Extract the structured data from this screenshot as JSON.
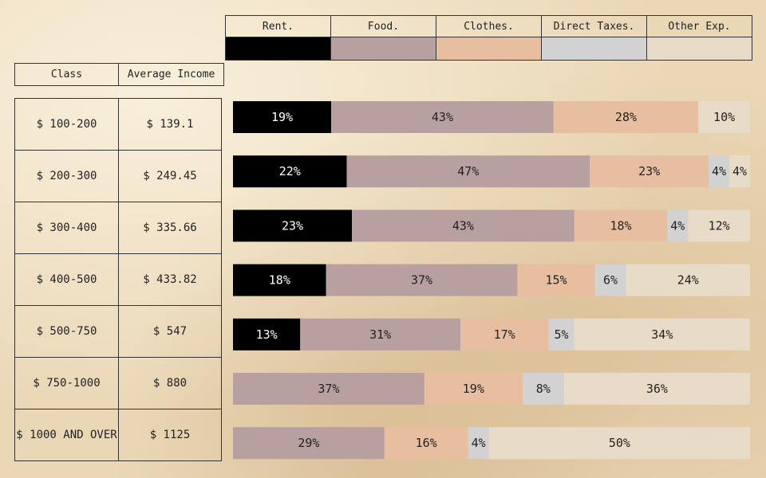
{
  "legend": [
    {
      "label": "Rent.",
      "color": "#000000"
    },
    {
      "label": "Food.",
      "color": "#b8a0a0"
    },
    {
      "label": "Clothes.",
      "color": "#e8bea0"
    },
    {
      "label": "Direct Taxes.",
      "color": "#d2d2d2"
    },
    {
      "label": "Other Exp.",
      "color": "#e8dcc8"
    }
  ],
  "table": {
    "class_header": "Class",
    "income_header": "Average Income"
  },
  "chart_data": {
    "type": "bar",
    "orientation": "horizontal",
    "stacked": true,
    "normalized": "percent",
    "categories": [
      "$ 100-200",
      "$ 200-300",
      "$ 300-400",
      "$ 400-500",
      "$ 500-750",
      "$ 750-1000",
      "$ 1000 AND OVER"
    ],
    "average_income": [
      "$ 139.1",
      "$ 249.45",
      "$ 335.66",
      "$ 433.82",
      "$ 547",
      "$ 880",
      "$ 1125"
    ],
    "series": [
      {
        "name": "Rent.",
        "values": [
          19,
          22,
          23,
          18,
          13,
          0,
          0
        ]
      },
      {
        "name": "Food.",
        "values": [
          43,
          47,
          43,
          37,
          31,
          37,
          29
        ]
      },
      {
        "name": "Clothes.",
        "values": [
          28,
          23,
          18,
          15,
          17,
          19,
          16
        ]
      },
      {
        "name": "Direct Taxes.",
        "values": [
          0,
          4,
          4,
          6,
          5,
          8,
          4
        ]
      },
      {
        "name": "Other Exp.",
        "values": [
          10,
          4,
          12,
          24,
          34,
          36,
          50
        ]
      }
    ],
    "value_suffix": "%",
    "legend_position": "top"
  }
}
